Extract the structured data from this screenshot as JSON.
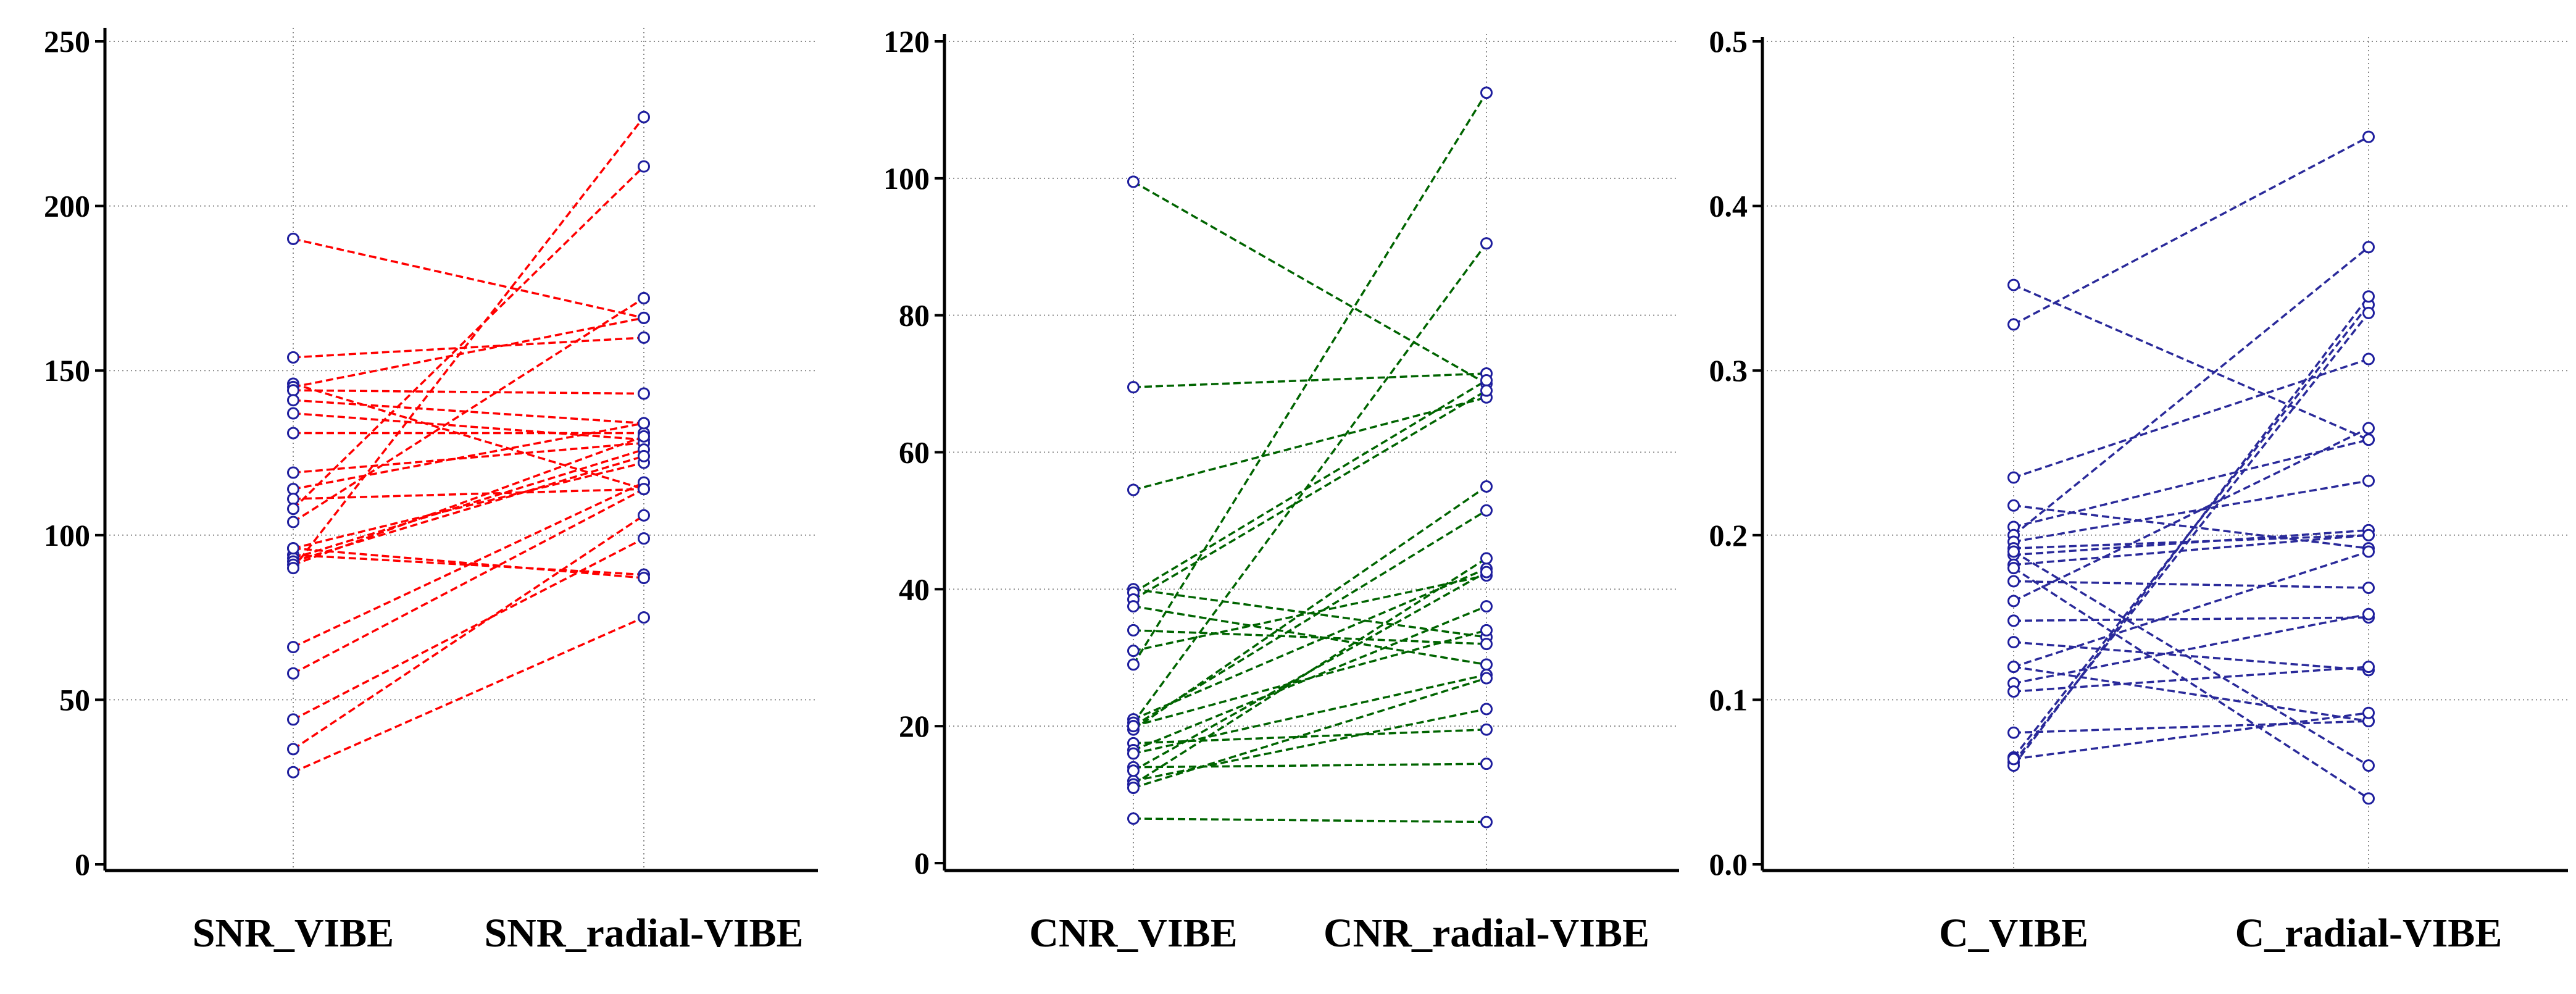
{
  "chart_data": [
    {
      "type": "line",
      "title": "",
      "categories": [
        "SNR_VIBE",
        "SNR_radial-VIBE"
      ],
      "ylim": [
        0,
        250
      ],
      "yticks": [
        "0",
        "50",
        "100",
        "150",
        "200",
        "250"
      ],
      "grid": true,
      "color": "#ff0000",
      "marker_color": "#1f1f9e",
      "pairs": [
        [
          190,
          166
        ],
        [
          154,
          160
        ],
        [
          146,
          114
        ],
        [
          145,
          166
        ],
        [
          144,
          143
        ],
        [
          141,
          134
        ],
        [
          137,
          129
        ],
        [
          131,
          131
        ],
        [
          119,
          128
        ],
        [
          114,
          134
        ],
        [
          111,
          114
        ],
        [
          108,
          212
        ],
        [
          104,
          172
        ],
        [
          96,
          122
        ],
        [
          94,
          88
        ],
        [
          93,
          126
        ],
        [
          92,
          124
        ],
        [
          91,
          130
        ],
        [
          66,
          116
        ],
        [
          58,
          114
        ],
        [
          44,
          99
        ],
        [
          35,
          106
        ],
        [
          28,
          75
        ],
        [
          96,
          87
        ],
        [
          90,
          227
        ]
      ]
    },
    {
      "type": "line",
      "title": "",
      "categories": [
        "CNR_VIBE",
        "CNR_radial-VIBE"
      ],
      "ylim": [
        0,
        120
      ],
      "yticks": [
        "0",
        "20",
        "40",
        "60",
        "80",
        "100",
        "120"
      ],
      "grid": true,
      "color": "#006400",
      "marker_color": "#1f1f9e",
      "pairs": [
        [
          99.5,
          70
        ],
        [
          69.5,
          71.5
        ],
        [
          54.5,
          68
        ],
        [
          40,
          33
        ],
        [
          39.5,
          70.5
        ],
        [
          38.5,
          69
        ],
        [
          37.5,
          29
        ],
        [
          34,
          32
        ],
        [
          31,
          42
        ],
        [
          29,
          112.5
        ],
        [
          21,
          43
        ],
        [
          20.5,
          90.5
        ],
        [
          20,
          51.5
        ],
        [
          19.5,
          55
        ],
        [
          17.5,
          19.5
        ],
        [
          16.5,
          37.5
        ],
        [
          16,
          27.5
        ],
        [
          14,
          14.5
        ],
        [
          12,
          22.5
        ],
        [
          11.5,
          44.5
        ],
        [
          6.5,
          6
        ],
        [
          20,
          34
        ],
        [
          13.5,
          42.5
        ],
        [
          11,
          27
        ]
      ]
    },
    {
      "type": "line",
      "title": "",
      "categories": [
        "C_VIBE",
        "C_radial-VIBE"
      ],
      "ylim": [
        0,
        0.5
      ],
      "yticks": [
        "0.0",
        "0.1",
        "0.2",
        "0.3",
        "0.4",
        "0.5"
      ],
      "grid": true,
      "color": "#2a2a9a",
      "marker_color": "#1f1f9e",
      "pairs": [
        [
          0.352,
          0.258
        ],
        [
          0.328,
          0.442
        ],
        [
          0.235,
          0.307
        ],
        [
          0.218,
          0.192
        ],
        [
          0.205,
          0.258
        ],
        [
          0.2,
          0.375
        ],
        [
          0.196,
          0.233
        ],
        [
          0.192,
          0.2
        ],
        [
          0.188,
          0.203
        ],
        [
          0.182,
          0.2
        ],
        [
          0.172,
          0.168
        ],
        [
          0.16,
          0.265
        ],
        [
          0.148,
          0.15
        ],
        [
          0.135,
          0.118
        ],
        [
          0.12,
          0.087
        ],
        [
          0.11,
          0.152
        ],
        [
          0.105,
          0.12
        ],
        [
          0.08,
          0.087
        ],
        [
          0.065,
          0.34
        ],
        [
          0.062,
          0.335
        ],
        [
          0.06,
          0.345
        ],
        [
          0.19,
          0.06
        ],
        [
          0.18,
          0.04
        ],
        [
          0.12,
          0.19
        ],
        [
          0.064,
          0.092
        ]
      ]
    }
  ]
}
